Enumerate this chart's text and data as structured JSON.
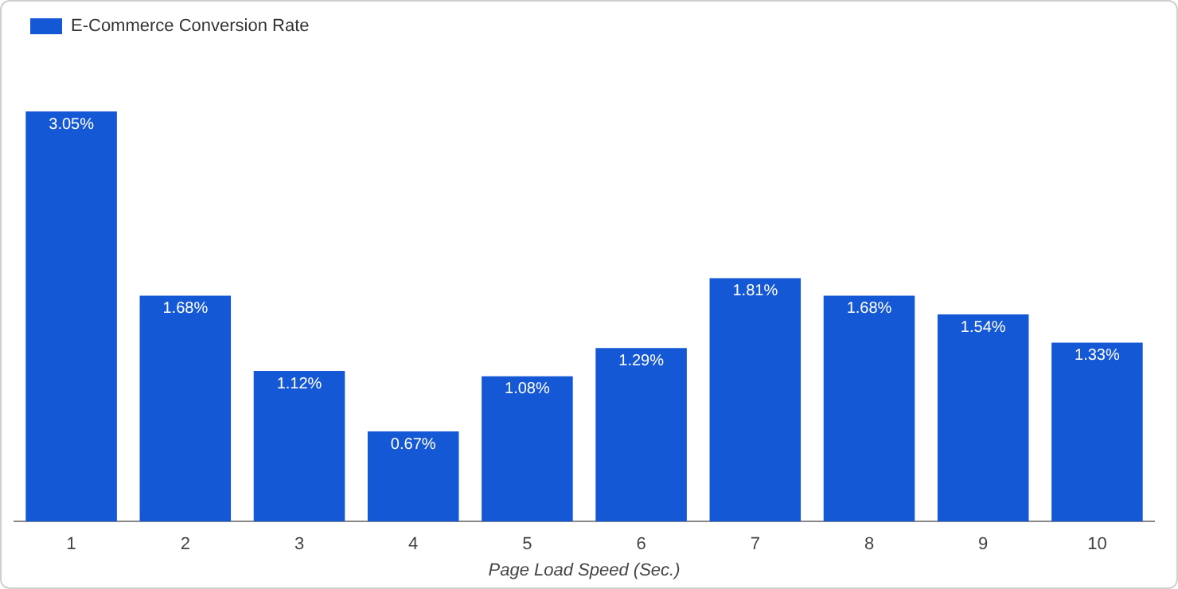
{
  "chart_data": {
    "type": "bar",
    "xlabel": "Page Load Speed (Sec.)",
    "categories": [
      "1",
      "2",
      "3",
      "4",
      "5",
      "6",
      "7",
      "8",
      "9",
      "10"
    ],
    "series": [
      {
        "name": "E-Commerce Conversion Rate",
        "color": "#1558d6",
        "values": [
          3.05,
          1.68,
          1.12,
          0.67,
          1.08,
          1.29,
          1.81,
          1.68,
          1.54,
          1.33
        ],
        "value_labels": [
          "3.05%",
          "1.68%",
          "1.12%",
          "0.67%",
          "1.08%",
          "1.29%",
          "1.81%",
          "1.68%",
          "1.54%",
          "1.33%"
        ]
      }
    ],
    "tick_labels": "x",
    "grid": false,
    "legend": "top left"
  }
}
